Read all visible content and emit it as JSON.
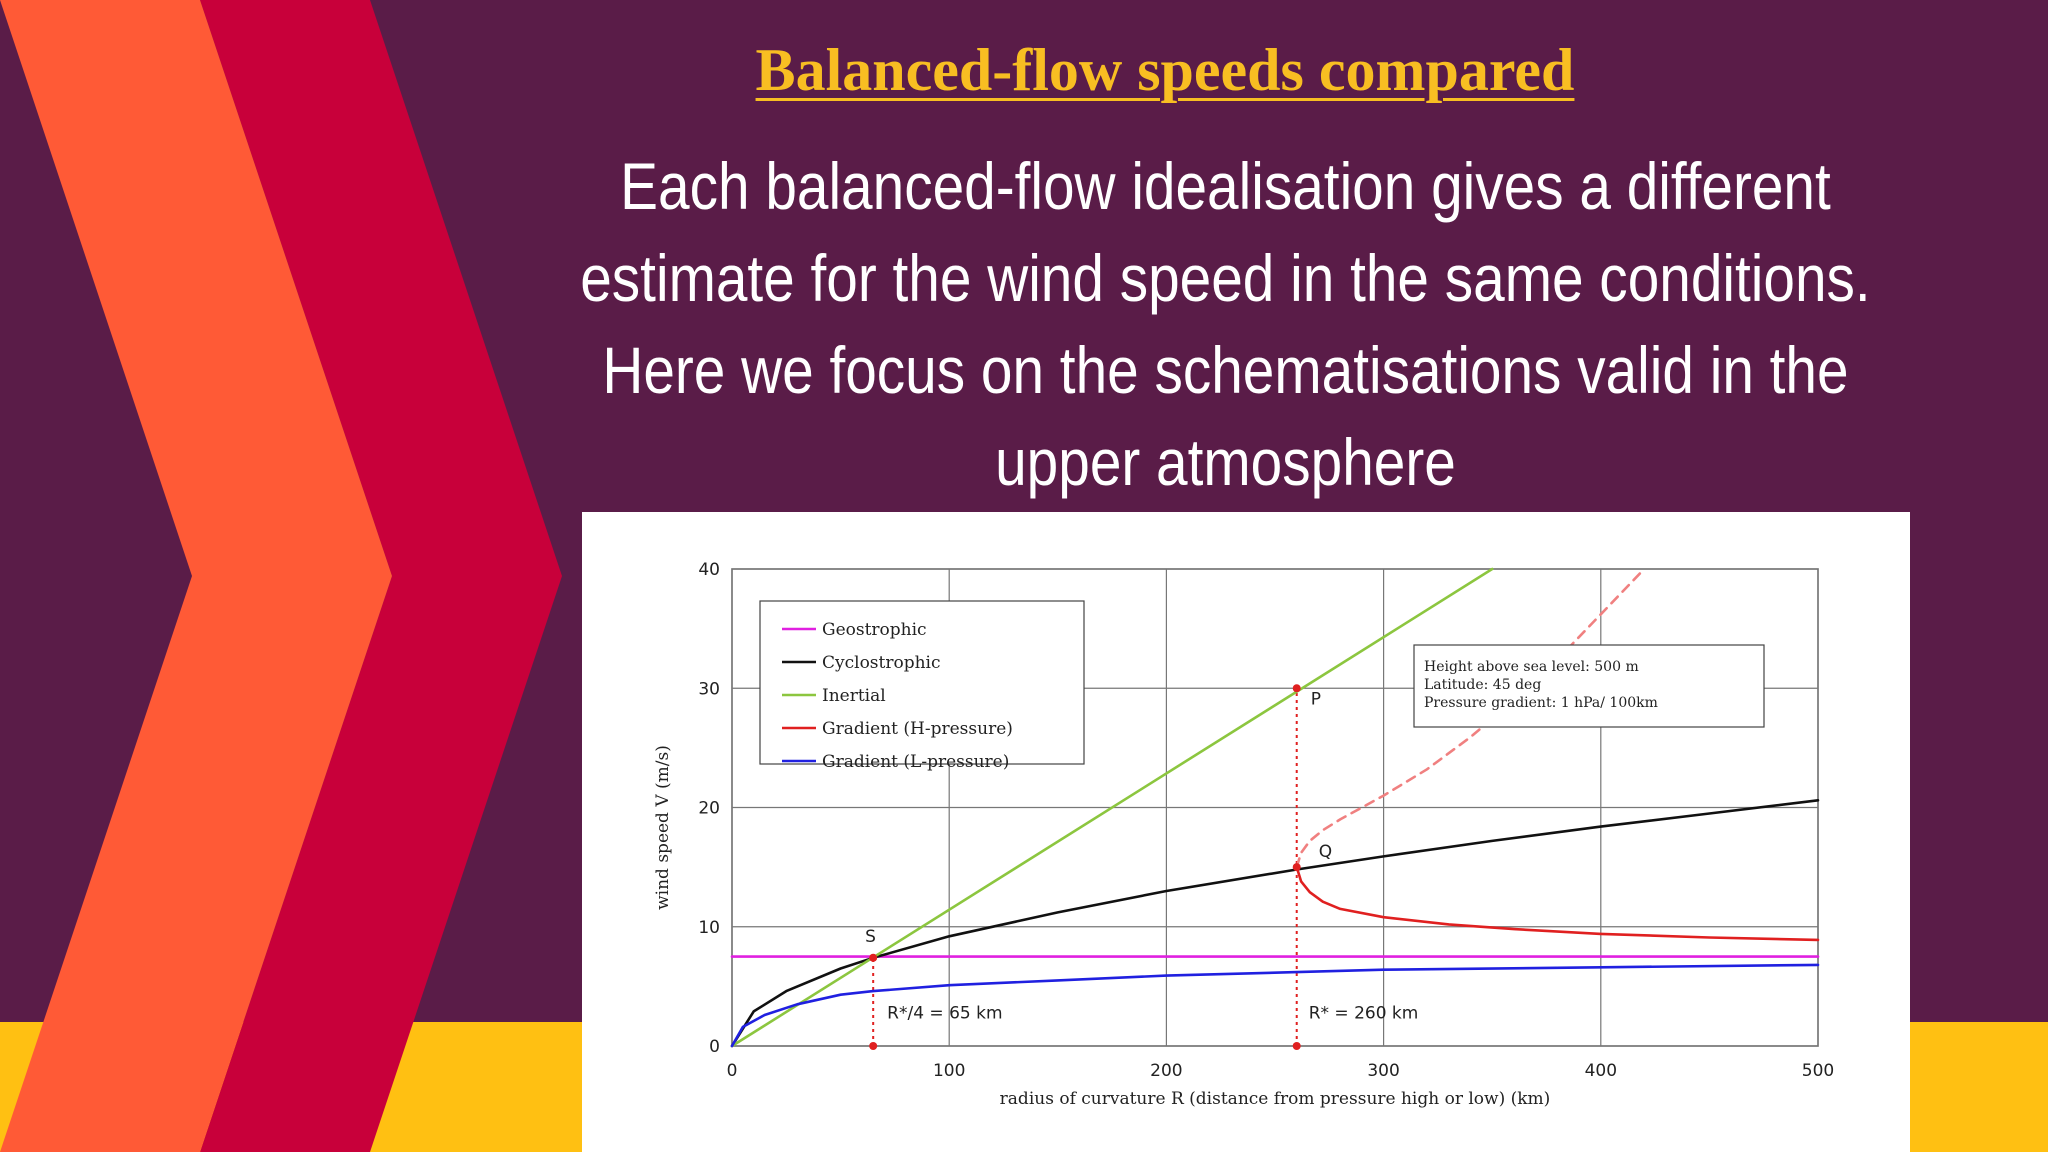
{
  "slide": {
    "title": "Balanced-flow speeds compared",
    "body": "Each balanced-flow idealisation gives a different estimate for the wind speed in the same conditions. Here we focus on the schematisations valid in the upper atmosphere"
  },
  "colors": {
    "background": "#5a1c48",
    "chevron_orange": "#ff5a36",
    "chevron_red": "#c8003a",
    "yellow_band": "#ffc012",
    "title": "#f8be22"
  },
  "chart_data": {
    "type": "line",
    "xlabel": "radius of curvature R (distance from pressure high or low) (km)",
    "ylabel": "wind speed V (m/s)",
    "xlim": [
      0,
      500
    ],
    "ylim": [
      0,
      40
    ],
    "x_ticks": [
      0,
      100,
      200,
      300,
      400,
      500
    ],
    "y_ticks": [
      0,
      10,
      20,
      30,
      40
    ],
    "grid": true,
    "legend_position": "top-left",
    "series": [
      {
        "name": "Geostrophic",
        "color": "#e020e0",
        "dash": false,
        "x": [
          0,
          500
        ],
        "y": [
          7.5,
          7.5
        ]
      },
      {
        "name": "Cyclostrophic",
        "color": "#111111",
        "dash": false,
        "x": [
          0,
          10,
          25,
          50,
          65,
          100,
          150,
          200,
          260,
          300,
          350,
          400,
          450,
          500
        ],
        "y": [
          0,
          2.9,
          4.6,
          6.5,
          7.4,
          9.2,
          11.2,
          13.0,
          14.8,
          15.9,
          17.2,
          18.4,
          19.5,
          20.6
        ]
      },
      {
        "name": "Inertial",
        "color": "#8cc63f",
        "dash": false,
        "x": [
          0,
          350
        ],
        "y": [
          0,
          40
        ]
      },
      {
        "name": "Gradient (H-pressure)",
        "color": "#e02020",
        "dash": false,
        "x": [
          260,
          262,
          266,
          272,
          280,
          300,
          330,
          360,
          400,
          450,
          500
        ],
        "y": [
          15.0,
          13.8,
          12.9,
          12.1,
          11.5,
          10.8,
          10.2,
          9.8,
          9.4,
          9.1,
          8.9
        ]
      },
      {
        "name": "Gradient (H-pressure) unstable branch",
        "color": "#f08080",
        "dash": true,
        "x": [
          260,
          262,
          266,
          272,
          280,
          300,
          320,
          340,
          360,
          380,
          400,
          420
        ],
        "y": [
          15.0,
          16.2,
          17.2,
          18.1,
          19.0,
          21.0,
          23.2,
          25.9,
          29.0,
          32.4,
          36.2,
          40.0
        ]
      },
      {
        "name": "Gradient (L-pressure)",
        "color": "#2020e0",
        "dash": false,
        "x": [
          0,
          5,
          15,
          30,
          50,
          65,
          100,
          150,
          200,
          260,
          300,
          400,
          500
        ],
        "y": [
          0,
          1.6,
          2.6,
          3.5,
          4.3,
          4.6,
          5.1,
          5.5,
          5.9,
          6.2,
          6.4,
          6.6,
          6.8
        ]
      }
    ],
    "legend_entries": [
      "Geostrophic",
      "Cyclostrophic",
      "Inertial",
      "Gradient (H-pressure)",
      "Gradient (L-pressure)"
    ],
    "info_box": [
      "Height above sea level: 500 m",
      "Latitude: 45 deg",
      "Pressure gradient: 1 hPa/ 100km"
    ],
    "points": [
      {
        "label": "S",
        "x": 65,
        "y": 7.4
      },
      {
        "label": "P",
        "x": 260,
        "y": 30
      },
      {
        "label": "Q",
        "x": 260,
        "y": 15
      }
    ],
    "vlines": [
      {
        "x": 65,
        "from": 0,
        "to": 7.4,
        "label": "R*/4 = 65 km"
      },
      {
        "x": 260,
        "from": 0,
        "to": 30,
        "label": "R* = 260 km"
      }
    ]
  }
}
